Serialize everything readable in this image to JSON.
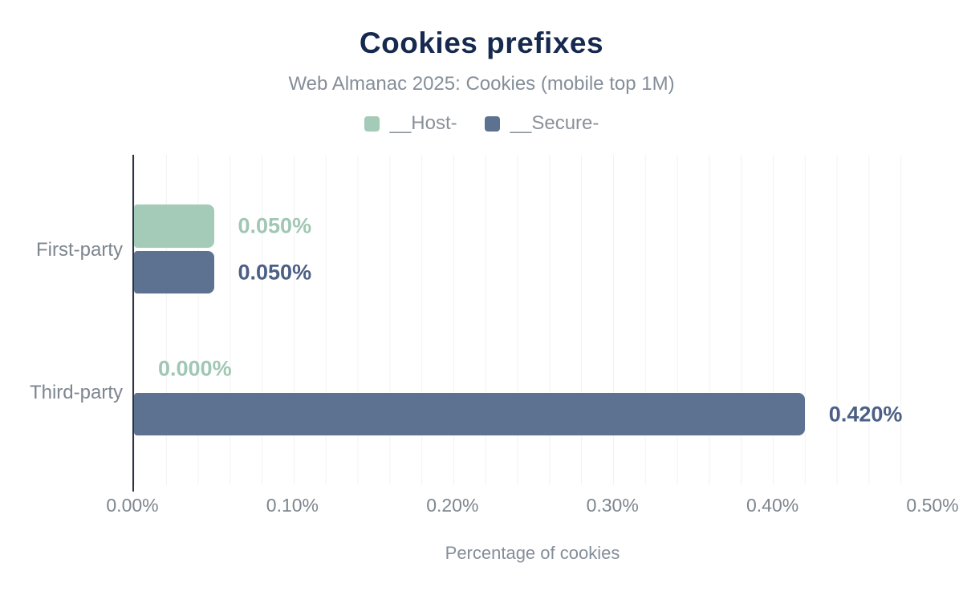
{
  "title": "Cookies prefixes",
  "subtitle": "Web Almanac 2025: Cookies (mobile top 1M)",
  "legend": {
    "items": [
      {
        "label": "__Host-",
        "color": "#a4cbb8"
      },
      {
        "label": "__Secure-",
        "color": "#5d7190"
      }
    ]
  },
  "axis": {
    "x_label": "Percentage of cookies",
    "x_ticks": [
      "0.00%",
      "0.10%",
      "0.20%",
      "0.30%",
      "0.40%",
      "0.50%"
    ]
  },
  "colors": {
    "title": "#16294f",
    "subtitle": "#858e99",
    "axis_line": "#2b3440",
    "gridline": "#f2f2f4",
    "host_green": "#a4cbb8",
    "secure_blue": "#5d7190"
  },
  "chart_data": {
    "type": "bar",
    "orientation": "horizontal",
    "title": "Cookies prefixes",
    "subtitle": "Web Almanac 2025: Cookies (mobile top 1M)",
    "categories": [
      "First-party",
      "Third-party"
    ],
    "series": [
      {
        "name": "__Host-",
        "color": "#a4cbb8",
        "values": [
          0.05,
          0.0
        ],
        "data_labels": [
          "0.050%",
          "0.000%"
        ]
      },
      {
        "name": "__Secure-",
        "color": "#5d7190",
        "values": [
          0.05,
          0.42
        ],
        "data_labels": [
          "0.050%",
          "0.420%"
        ]
      }
    ],
    "xlabel": "Percentage of cookies",
    "ylabel": "",
    "xlim": [
      0,
      0.5
    ],
    "x_tick_interval": 0.1,
    "x_minor_grid_interval": 0.02,
    "grid": true,
    "legend_position": "top"
  }
}
